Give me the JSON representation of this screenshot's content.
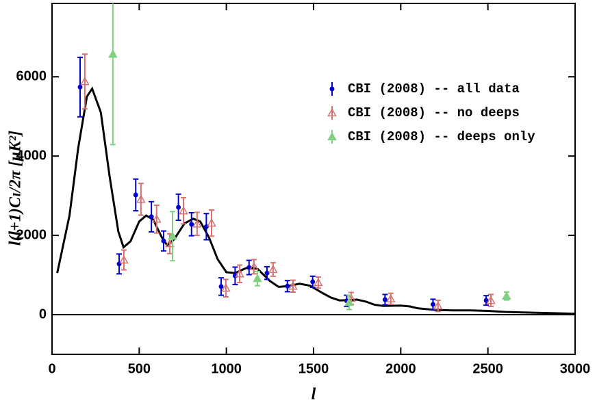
{
  "chart_data": {
    "type": "scatter",
    "x_label": "l",
    "y_label": "l(l+1)Cₗ/2π [μK²]",
    "xlim": [
      0,
      3000
    ],
    "ylim": [
      -1000,
      7850
    ],
    "xticks": [
      0,
      500,
      1000,
      1500,
      2000,
      2500,
      3000
    ],
    "yticks": [
      0,
      2000,
      4000,
      6000
    ],
    "reference_line": 0,
    "legend": "upper right",
    "series": [
      {
        "name": "CBI (2008) -- all data",
        "color": "#0000c8",
        "marker": "circle",
        "x": [
          161,
          385,
          480,
          570,
          640,
          725,
          800,
          885,
          970,
          1050,
          1130,
          1233,
          1350,
          1495,
          1690,
          1910,
          2185,
          2490
        ],
        "values": [
          5740,
          1280,
          3020,
          2470,
          1860,
          2710,
          2280,
          2220,
          710,
          980,
          1190,
          1050,
          720,
          830,
          350,
          380,
          260,
          360
        ],
        "errors": [
          750,
          250,
          400,
          380,
          250,
          330,
          290,
          330,
          220,
          220,
          180,
          160,
          140,
          140,
          140,
          130,
          130,
          120
        ]
      },
      {
        "name": "CBI (2008) -- no deeps",
        "color": "#d87070",
        "marker": "open-triangle",
        "x": [
          188,
          412,
          510,
          600,
          675,
          754,
          832,
          915,
          997,
          1076,
          1158,
          1268,
          1382,
          1527,
          1716,
          1943,
          2214,
          2517
        ],
        "values": [
          5880,
          1380,
          2910,
          2410,
          1790,
          2620,
          2290,
          2310,
          670,
          1030,
          1210,
          1140,
          720,
          810,
          410,
          400,
          220,
          360
        ],
        "errors": [
          690,
          250,
          400,
          350,
          250,
          330,
          290,
          330,
          220,
          220,
          180,
          170,
          150,
          140,
          150,
          140,
          140,
          150
        ]
      },
      {
        "name": "CBI (2008) -- deeps only",
        "color": "#80d080",
        "marker": "triangle",
        "x": [
          349,
          691,
          1178,
          1704,
          2607
        ],
        "values": [
          6570,
          1980,
          910,
          310,
          470
        ],
        "errors": [
          2280,
          620,
          180,
          180,
          100
        ]
      }
    ],
    "model": {
      "color": "#000000",
      "x": [
        30,
        100,
        150,
        200,
        230,
        280,
        330,
        380,
        410,
        450,
        500,
        540,
        580,
        630,
        660,
        700,
        760,
        810,
        850,
        900,
        950,
        1000,
        1050,
        1100,
        1130,
        1180,
        1250,
        1300,
        1350,
        1420,
        1480,
        1550,
        1600,
        1650,
        1700,
        1750,
        1800,
        1850,
        1900,
        2000,
        2050,
        2100,
        2200,
        2300,
        2400,
        2500,
        2600,
        2700,
        2800,
        2900,
        3000
      ],
      "values": [
        1050,
        2500,
        4200,
        5500,
        5700,
        5100,
        3500,
        2100,
        1700,
        1850,
        2350,
        2500,
        2400,
        1950,
        1750,
        1900,
        2300,
        2420,
        2350,
        1950,
        1400,
        1070,
        1050,
        1150,
        1200,
        1150,
        850,
        700,
        720,
        780,
        730,
        550,
        430,
        360,
        370,
        380,
        330,
        250,
        220,
        230,
        210,
        160,
        120,
        110,
        110,
        95,
        70,
        55,
        45,
        35,
        25
      ]
    }
  }
}
